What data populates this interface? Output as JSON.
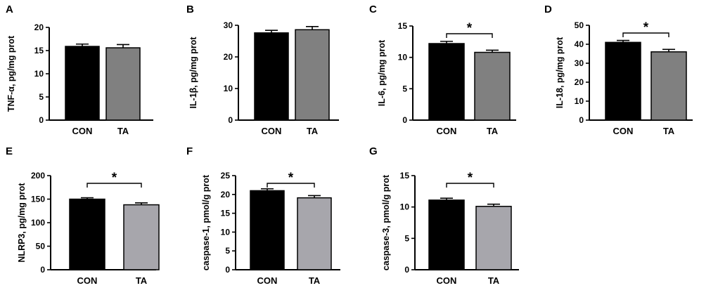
{
  "figure_colors": {
    "con": "#000000",
    "ta_dark": "#808080",
    "ta_light": "#a7a6ac"
  },
  "chart_data": [
    {
      "panel": "A",
      "type": "bar",
      "categories": [
        "CON",
        "TA"
      ],
      "values": [
        15.9,
        15.6
      ],
      "errors": [
        0.5,
        0.7
      ],
      "ylabel": "TNF-α, pg/mg prot",
      "ylim": [
        0,
        20
      ],
      "yticks": [
        "0",
        "5",
        "10",
        "15",
        "20"
      ],
      "significance": null,
      "ta_color": "ta_dark"
    },
    {
      "panel": "B",
      "type": "bar",
      "categories": [
        "CON",
        "TA"
      ],
      "values": [
        27.6,
        28.6
      ],
      "errors": [
        0.8,
        1.0
      ],
      "ylabel": "IL-1β, pg/mg prot",
      "ylim": [
        0,
        30
      ],
      "yticks": [
        "0",
        "10",
        "20",
        "30"
      ],
      "significance": null,
      "ta_color": "ta_dark"
    },
    {
      "panel": "C",
      "type": "bar",
      "categories": [
        "CON",
        "TA"
      ],
      "values": [
        12.2,
        10.8
      ],
      "errors": [
        0.35,
        0.35
      ],
      "ylabel": "IL-6, pg/mg prot",
      "ylim": [
        0,
        15
      ],
      "yticks": [
        "0",
        "5",
        "10",
        "15"
      ],
      "significance": "*",
      "ta_color": "ta_dark"
    },
    {
      "panel": "D",
      "type": "bar",
      "categories": [
        "CON",
        "TA"
      ],
      "values": [
        41.0,
        36.0
      ],
      "errors": [
        1.0,
        1.3
      ],
      "ylabel": "IL-18, pg/mg prot",
      "ylim": [
        0,
        50
      ],
      "yticks": [
        "0",
        "10",
        "20",
        "30",
        "40",
        "50"
      ],
      "significance": "*",
      "ta_color": "ta_dark"
    },
    {
      "panel": "E",
      "type": "bar",
      "categories": [
        "CON",
        "TA"
      ],
      "values": [
        150,
        138
      ],
      "errors": [
        3,
        4
      ],
      "ylabel": "NLRP3, pg/mg prot",
      "ylim": [
        0,
        200
      ],
      "yticks": [
        "0",
        "50",
        "100",
        "150",
        "200"
      ],
      "significance": "*",
      "ta_color": "ta_light"
    },
    {
      "panel": "F",
      "type": "bar",
      "categories": [
        "CON",
        "TA"
      ],
      "values": [
        21.0,
        19.1
      ],
      "errors": [
        0.5,
        0.6
      ],
      "ylabel": "caspase-1, pmol/g prot",
      "ylim": [
        0,
        25
      ],
      "yticks": [
        "0",
        "5",
        "10",
        "15",
        "20",
        "25"
      ],
      "significance": "*",
      "ta_color": "ta_light"
    },
    {
      "panel": "G",
      "type": "bar",
      "categories": [
        "CON",
        "TA"
      ],
      "values": [
        11.1,
        10.1
      ],
      "errors": [
        0.3,
        0.35
      ],
      "ylabel": "caspase-3, pmol/g prot",
      "ylim": [
        0,
        15
      ],
      "yticks": [
        "0",
        "5",
        "10",
        "15"
      ],
      "significance": "*",
      "ta_color": "ta_light"
    }
  ]
}
